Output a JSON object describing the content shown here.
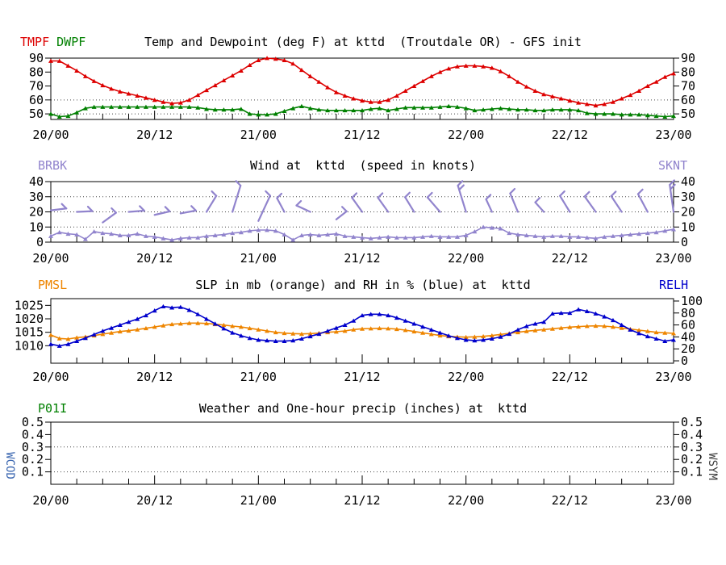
{
  "x_axis": {
    "labels": [
      "20/00",
      "20/12",
      "21/00",
      "21/12",
      "22/00",
      "22/12",
      "23/00"
    ],
    "total_hours": 72,
    "major_tick_hours": 12,
    "minor_tick_hours": 3
  },
  "chart_data": [
    {
      "type": "line",
      "title": "Temp and Dewpoint (deg F) at kttd  (Troutdale OR) - GFS init",
      "legend_left": [
        {
          "label": "TMPF",
          "color": "#dd0000"
        },
        {
          "label": "DWPF",
          "color": "#008000"
        }
      ],
      "y_axis": {
        "min": 46,
        "max": 90,
        "ticks": [
          50,
          60,
          70,
          80,
          90
        ],
        "dotted_gridlines": [
          50,
          60
        ],
        "both_sides": true
      },
      "series": [
        {
          "name": "TMPF",
          "axis": "left",
          "color": "#dd0000",
          "values": [
            88,
            88,
            84.5,
            81,
            77,
            73.5,
            70.5,
            68,
            66,
            64.5,
            63,
            61.5,
            60,
            58.5,
            57.5,
            58,
            60,
            63.5,
            67,
            70.5,
            74,
            77.5,
            81,
            85,
            88.5,
            90,
            89.5,
            88.5,
            86,
            81.5,
            77,
            73,
            69,
            65.5,
            63,
            61,
            59.5,
            58.5,
            58.5,
            60,
            63,
            66.5,
            70,
            73.5,
            77,
            80,
            82.5,
            84,
            84.5,
            84.5,
            84,
            83,
            80.5,
            77,
            73,
            69.5,
            66.5,
            64,
            62.5,
            61,
            59.5,
            58,
            57,
            56,
            57,
            58.5,
            61,
            63.5,
            66.5,
            70,
            73,
            76.5,
            79
          ]
        },
        {
          "name": "DWPF",
          "axis": "left",
          "color": "#008000",
          "values": [
            50,
            48,
            48.5,
            51,
            54,
            55,
            55,
            55,
            55,
            55,
            55,
            55,
            55,
            55,
            55,
            55,
            55,
            54.5,
            53.5,
            53,
            53,
            53,
            53.5,
            50,
            49.5,
            49.5,
            50,
            52,
            54,
            55.5,
            54,
            53,
            52.5,
            52.5,
            52.5,
            52.5,
            52.5,
            53.5,
            54,
            52.5,
            53.5,
            54.5,
            54.5,
            54.5,
            54.5,
            55,
            55.5,
            55,
            54,
            52.5,
            53,
            53.5,
            54,
            53.5,
            53,
            53,
            52.5,
            52.5,
            53,
            53,
            53,
            52.5,
            50.5,
            50,
            50,
            50,
            49.5,
            49.5,
            49.5,
            49,
            48.5,
            48,
            48.5
          ]
        }
      ]
    },
    {
      "type": "line+windbarbs",
      "title": "Wind at  kttd  (speed in knots)",
      "legend_left": [
        {
          "label": "BRBK",
          "color": "#9184cd"
        }
      ],
      "legend_right": [
        {
          "label": "SKNT",
          "color": "#9184cd"
        }
      ],
      "y_axis": {
        "min": 0,
        "max": 40,
        "ticks": [
          0,
          10,
          20,
          30,
          40
        ],
        "dotted_gridlines": [
          10,
          20,
          30
        ],
        "both_sides": true
      },
      "series": [
        {
          "name": "SKNT",
          "axis": "left",
          "color": "#9184cd",
          "values": [
            4,
            6.5,
            5.5,
            5,
            2,
            7,
            6,
            5.5,
            4.5,
            4.5,
            5.5,
            4,
            3.5,
            2.5,
            1.5,
            2.5,
            3,
            3,
            4,
            4.5,
            5,
            6,
            6.5,
            7.5,
            8,
            8,
            7.5,
            5,
            1.5,
            4.5,
            5,
            4.5,
            5,
            5.5,
            4,
            3.5,
            3,
            2.5,
            3,
            3.5,
            3,
            3,
            3,
            3.5,
            4,
            3.5,
            3.5,
            3.5,
            4.5,
            7,
            10,
            9.5,
            9,
            6,
            5,
            4.5,
            4,
            3.5,
            4,
            4,
            3.5,
            3.5,
            3,
            2.5,
            3.5,
            4,
            4.5,
            5,
            5.5,
            6,
            6.5,
            7.5,
            8.5
          ]
        }
      ],
      "barbs": {
        "color": "#9184cd",
        "format": "hour, base_y_knots, staff_angle_deg_ccw_from_east, staff_len_units, half_barbs",
        "items": [
          {
            "t": 0,
            "y": 21,
            "a": 8,
            "len": 9,
            "ticks": 1
          },
          {
            "t": 3,
            "y": 20,
            "a": 3,
            "len": 9,
            "ticks": 1
          },
          {
            "t": 6,
            "y": 13,
            "a": 40,
            "len": 10,
            "ticks": 1
          },
          {
            "t": 9,
            "y": 20,
            "a": 5,
            "len": 9,
            "ticks": 1
          },
          {
            "t": 12,
            "y": 18,
            "a": 15,
            "len": 9,
            "ticks": 1
          },
          {
            "t": 15,
            "y": 19,
            "a": 12,
            "len": 9,
            "ticks": 1
          },
          {
            "t": 18,
            "y": 20,
            "a": 62,
            "len": 12,
            "ticks": 1
          },
          {
            "t": 21,
            "y": 20,
            "a": 75,
            "len": 18,
            "ticks": 1
          },
          {
            "t": 24,
            "y": 14,
            "a": 68,
            "len": 18,
            "ticks": 1
          },
          {
            "t": 27,
            "y": 20,
            "a": 115,
            "len": 10,
            "ticks": 1
          },
          {
            "t": 30,
            "y": 20,
            "a": 152,
            "len": 9,
            "ticks": 1
          },
          {
            "t": 33,
            "y": 15,
            "a": 42,
            "len": 8,
            "ticks": 1
          },
          {
            "t": 36,
            "y": 20,
            "a": 122,
            "len": 11,
            "ticks": 1
          },
          {
            "t": 39,
            "y": 20,
            "a": 122,
            "len": 11,
            "ticks": 1
          },
          {
            "t": 42,
            "y": 20,
            "a": 118,
            "len": 11,
            "ticks": 1
          },
          {
            "t": 45,
            "y": 20,
            "a": 127,
            "len": 12,
            "ticks": 1
          },
          {
            "t": 48,
            "y": 20,
            "a": 105,
            "len": 18,
            "ticks": 2
          },
          {
            "t": 51,
            "y": 20,
            "a": 112,
            "len": 9,
            "ticks": 1
          },
          {
            "t": 54,
            "y": 20,
            "a": 110,
            "len": 13,
            "ticks": 1
          },
          {
            "t": 57,
            "y": 20,
            "a": 128,
            "len": 8,
            "ticks": 1
          },
          {
            "t": 60,
            "y": 20,
            "a": 118,
            "len": 12,
            "ticks": 1
          },
          {
            "t": 63,
            "y": 20,
            "a": 122,
            "len": 12,
            "ticks": 1
          },
          {
            "t": 66,
            "y": 20,
            "a": 120,
            "len": 12,
            "ticks": 1
          },
          {
            "t": 69,
            "y": 20,
            "a": 115,
            "len": 13,
            "ticks": 1
          },
          {
            "t": 72,
            "y": 20,
            "a": 97,
            "len": 18,
            "ticks": 2
          }
        ]
      }
    },
    {
      "type": "line",
      "title": "SLP in mb (orange) and RH in % (blue) at  kttd",
      "legend_left": [
        {
          "label": "PMSL",
          "color": "#ee8500"
        }
      ],
      "legend_right": [
        {
          "label": "RELH",
          "color": "#0000cc"
        }
      ],
      "y_axis": {
        "min": 1003.5,
        "max": 1027.5,
        "ticks": [
          1010,
          1015,
          1020,
          1025
        ],
        "dotted_gridlines": [],
        "both_sides": false
      },
      "y_axis_right": {
        "min": -4,
        "max": 104,
        "ticks": [
          0,
          20,
          40,
          60,
          80,
          100
        ]
      },
      "series": [
        {
          "name": "PMSL",
          "axis": "left",
          "color": "#ee8500",
          "values": [
            1014,
            1012.7,
            1012.5,
            1013,
            1013.3,
            1013.8,
            1014.3,
            1014.8,
            1015.3,
            1015.6,
            1016,
            1016.5,
            1017,
            1017.5,
            1018,
            1018.2,
            1018.4,
            1018.4,
            1018.3,
            1018,
            1017.7,
            1017.3,
            1017,
            1016.5,
            1016,
            1015.5,
            1015,
            1014.7,
            1014.5,
            1014.4,
            1014.5,
            1014.7,
            1015,
            1015.2,
            1015.5,
            1016,
            1016.3,
            1016.4,
            1016.5,
            1016.4,
            1016.2,
            1015.8,
            1015.3,
            1014.8,
            1014.3,
            1013.8,
            1013.5,
            1013.3,
            1013.2,
            1013.3,
            1013.5,
            1013.8,
            1014.2,
            1014.6,
            1015,
            1015.4,
            1015.7,
            1016,
            1016.3,
            1016.6,
            1016.9,
            1017.1,
            1017.3,
            1017.4,
            1017.3,
            1017,
            1016.6,
            1016.2,
            1015.8,
            1015.4,
            1015,
            1014.8,
            1014.6
          ]
        },
        {
          "name": "RELH",
          "axis": "right",
          "color": "#0000cc",
          "values": [
            28,
            25,
            28,
            33,
            38,
            44,
            50,
            55,
            60,
            65,
            70,
            76,
            84,
            91,
            89,
            90,
            85,
            78,
            70,
            62,
            54,
            47,
            42,
            38,
            35,
            34,
            33,
            33,
            34,
            37,
            41,
            45,
            50,
            55,
            60,
            67,
            76,
            78,
            78,
            76,
            72,
            67,
            62,
            57,
            52,
            47,
            42,
            38,
            35,
            34,
            35,
            37,
            40,
            45,
            52,
            58,
            62,
            65,
            79,
            80,
            80,
            86,
            83,
            79,
            74,
            68,
            60,
            52,
            46,
            41,
            37,
            33,
            35
          ]
        }
      ]
    },
    {
      "type": "line",
      "title": "Weather and One-hour precip (inches) at  kttd",
      "legend_left": [
        {
          "label": "P01I",
          "color": "#008000"
        }
      ],
      "side_label_left": {
        "text": "WCOD",
        "color": "#3a66b0"
      },
      "side_label_right": {
        "text": "WSYM",
        "color": "#3c3c3c"
      },
      "y_axis": {
        "min": 0,
        "max": 0.5,
        "ticks": [
          0.1,
          0.2,
          0.3,
          0.4,
          0.5
        ],
        "dotted_gridlines": [
          0.1,
          0.3
        ],
        "both_sides": true
      },
      "series": [
        {
          "name": "P01I",
          "axis": "left",
          "color": "#008000",
          "values": []
        }
      ]
    }
  ]
}
